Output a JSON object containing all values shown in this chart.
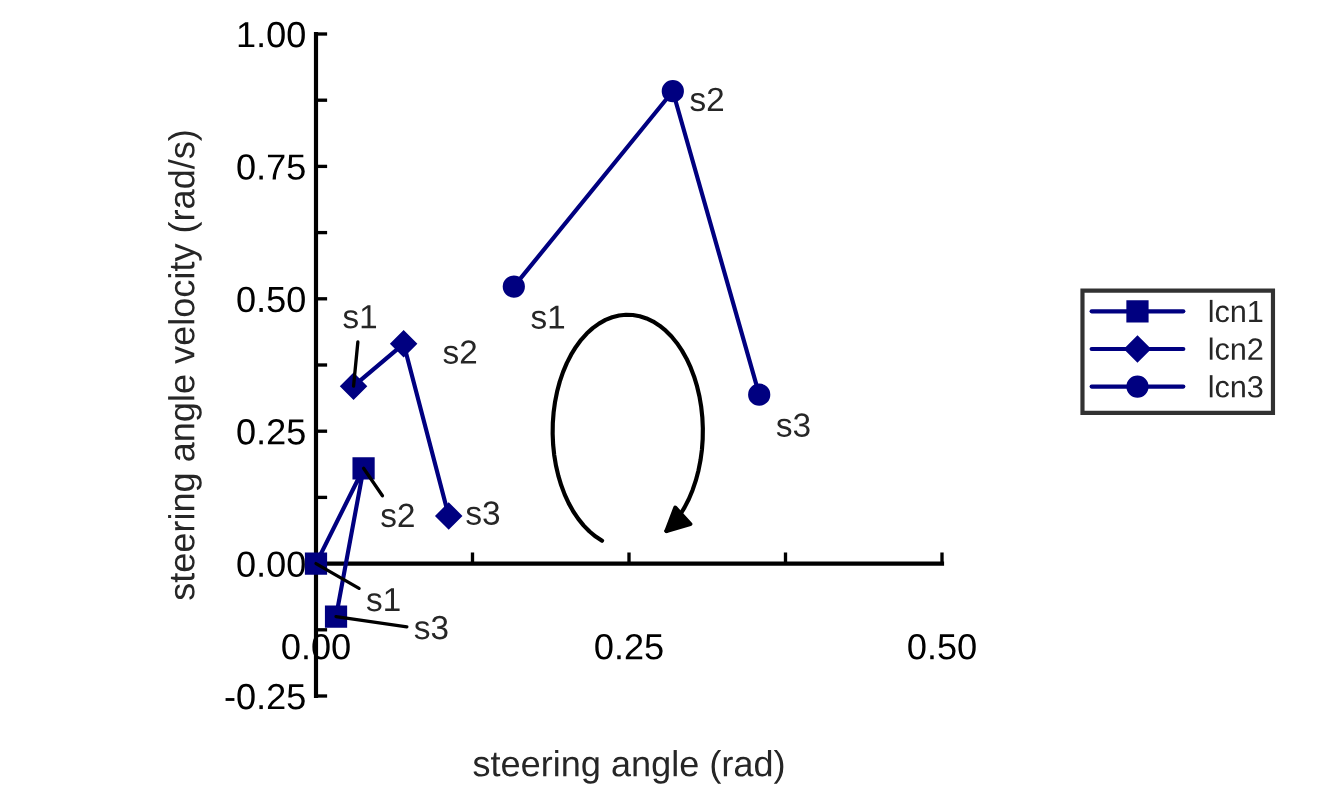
{
  "chart_data": {
    "type": "line",
    "xlabel": "steering angle (rad)",
    "ylabel": "steering angle velocity (rad/s)",
    "xlim": [
      0,
      0.5
    ],
    "xticks": [
      {
        "value": 0,
        "label": "0.00"
      },
      {
        "value": 0.125,
        "label": null
      },
      {
        "value": 0.25,
        "label": "0.25"
      },
      {
        "value": 0.375,
        "label": null
      },
      {
        "value": 0.5,
        "label": "0.50"
      }
    ],
    "ylim": [
      -0.25,
      1.0
    ],
    "yticks": [
      {
        "value": -0.25,
        "label": "-0.25"
      },
      {
        "value": -0.125,
        "label": null
      },
      {
        "value": 0,
        "label": "0.00"
      },
      {
        "value": 0.125,
        "label": null
      },
      {
        "value": 0.25,
        "label": "0.25"
      },
      {
        "value": 0.375,
        "label": null
      },
      {
        "value": 0.5,
        "label": "0.50"
      },
      {
        "value": 0.625,
        "label": null
      },
      {
        "value": 0.75,
        "label": "0.75"
      },
      {
        "value": 0.875,
        "label": null
      },
      {
        "value": 1.0,
        "label": "1.00"
      }
    ],
    "grid": false,
    "legend": "right",
    "line_style": "solid",
    "series": [
      {
        "name": "lcn1",
        "color": "#000080",
        "marker": "square",
        "x": [
          0.0,
          0.038,
          0.016
        ],
        "values": [
          0.0,
          0.18,
          -0.1
        ]
      },
      {
        "name": "lcn2",
        "color": "#000080",
        "marker": "diamond",
        "x": [
          0.03,
          0.07,
          0.106
        ],
        "values": [
          0.335,
          0.415,
          0.09
        ]
      },
      {
        "name": "lcn3",
        "color": "#000080",
        "marker": "circle",
        "x": [
          0.158,
          0.285,
          0.354
        ],
        "values": [
          0.523,
          0.892,
          0.319
        ]
      }
    ],
    "annotations": [
      {
        "text": "s1",
        "x": 0.0,
        "y": 0.0
      },
      {
        "text": "s2",
        "x": 0.038,
        "y": 0.18
      },
      {
        "text": "s3",
        "x": 0.016,
        "y": -0.1
      },
      {
        "text": "s1",
        "x": 0.03,
        "y": 0.335
      },
      {
        "text": "s2",
        "x": 0.07,
        "y": 0.415
      },
      {
        "text": "s3",
        "x": 0.106,
        "y": 0.09
      },
      {
        "text": "s1",
        "x": 0.158,
        "y": 0.523
      },
      {
        "text": "s2",
        "x": 0.285,
        "y": 0.892
      },
      {
        "text": "s3",
        "x": 0.354,
        "y": 0.319
      }
    ]
  }
}
